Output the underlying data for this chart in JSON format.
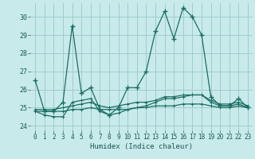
{
  "title": "",
  "xlabel": "Humidex (Indice chaleur)",
  "ylabel": "",
  "background_color": "#c8eaea",
  "grid_color": "#a0cccc",
  "line_color": "#1a6e64",
  "xlim": [
    -0.5,
    23.5
  ],
  "ylim": [
    23.75,
    30.75
  ],
  "yticks": [
    24,
    25,
    26,
    27,
    28,
    29,
    30
  ],
  "xticks": [
    0,
    1,
    2,
    3,
    4,
    5,
    6,
    7,
    8,
    9,
    10,
    11,
    12,
    13,
    14,
    15,
    16,
    17,
    18,
    19,
    20,
    21,
    22,
    23
  ],
  "series": [
    [
      26.5,
      24.8,
      24.8,
      25.3,
      29.5,
      25.8,
      26.1,
      24.9,
      24.6,
      25.0,
      26.1,
      26.1,
      27.0,
      29.2,
      30.3,
      28.8,
      30.5,
      30.0,
      29.0,
      25.6,
      25.1,
      25.1,
      25.5,
      25.0
    ],
    [
      24.8,
      24.6,
      24.5,
      24.5,
      25.3,
      25.4,
      25.5,
      24.8,
      24.6,
      24.7,
      24.9,
      25.0,
      25.1,
      25.3,
      25.5,
      25.5,
      25.6,
      25.7,
      25.7,
      25.3,
      25.1,
      25.1,
      25.2,
      25.0
    ],
    [
      24.9,
      24.9,
      24.9,
      25.0,
      25.1,
      25.2,
      25.3,
      25.1,
      25.0,
      25.1,
      25.2,
      25.3,
      25.3,
      25.4,
      25.6,
      25.6,
      25.7,
      25.7,
      25.7,
      25.4,
      25.2,
      25.2,
      25.3,
      25.1
    ],
    [
      24.8,
      24.8,
      24.8,
      24.8,
      24.9,
      24.9,
      25.0,
      24.9,
      24.9,
      24.9,
      24.9,
      25.0,
      25.0,
      25.1,
      25.1,
      25.1,
      25.2,
      25.2,
      25.2,
      25.1,
      25.0,
      25.0,
      25.1,
      25.0
    ]
  ]
}
